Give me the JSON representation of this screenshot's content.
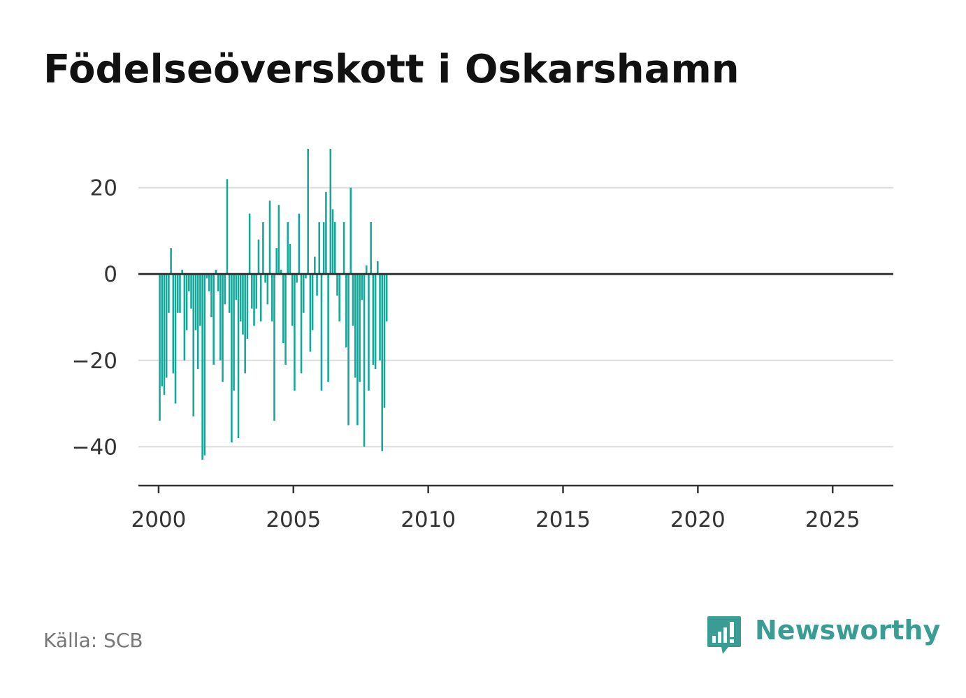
{
  "header": {
    "title": "Födelseöverskott i Oskarshamn"
  },
  "footer": {
    "source": "Källa: SCB",
    "brand": "Newsworthy"
  },
  "colors": {
    "bar": "#12a89a",
    "grid": "#dcdcdc",
    "axis": "#333333",
    "brand": "#3a9d94"
  },
  "icons": {
    "brand_logo": "newsworthy-logo-icon"
  },
  "chart_data": {
    "type": "bar",
    "title": "Födelseöverskott i Oskarshamn",
    "xlabel": "",
    "ylabel": "",
    "grid": true,
    "ylim": [
      -49,
      29
    ],
    "xlim": [
      1999.25,
      2027.25
    ],
    "y_ticks": [
      20,
      0,
      -20,
      -40
    ],
    "x_ticks": [
      2000,
      2005,
      2010,
      2015,
      2020,
      2025
    ],
    "x_interval": "monthly",
    "x_start": "2000-01",
    "values": [
      -34,
      -26,
      -28,
      -24,
      -9,
      6,
      -23,
      -30,
      -9,
      -9,
      1,
      -20,
      -13,
      -4,
      -8,
      -33,
      -13,
      -22,
      -12,
      -43,
      -42,
      -1,
      -4,
      -10,
      -21,
      1,
      -4,
      -20,
      -25,
      -7,
      22,
      -9,
      -39,
      -27,
      -6,
      -38,
      -11,
      -14,
      -23,
      -15,
      14,
      -8,
      -12,
      -8,
      8,
      -11,
      12,
      -2,
      -7,
      17,
      -11,
      -34,
      6,
      16,
      1,
      -16,
      -21,
      12,
      7,
      -12,
      -27,
      -2,
      14,
      -23,
      -9,
      -1,
      29,
      -18,
      -13,
      4,
      -5,
      12,
      -27,
      12,
      19,
      -25,
      29,
      15,
      12,
      -5,
      -11,
      0,
      12,
      -17,
      -35,
      20,
      -12,
      -24,
      -35,
      -25,
      -6,
      -40,
      2,
      -27,
      12,
      -21,
      -22,
      3,
      -20,
      -41,
      -31,
      -11
    ]
  }
}
